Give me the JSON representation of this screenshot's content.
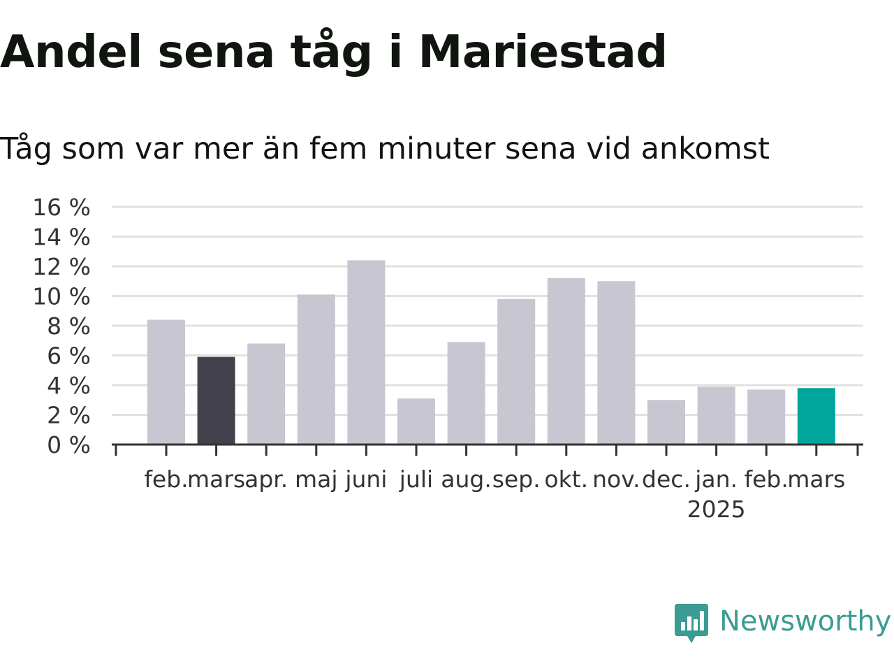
{
  "chart_data": {
    "type": "bar",
    "title": "Andel sena tåg i Mariestad",
    "subtitle": "Tåg som var mer än fem minuter sena vid ankomst",
    "categories": [
      "feb.",
      "mars",
      "apr.",
      "maj",
      "juni",
      "juli",
      "aug.",
      "sep.",
      "okt.",
      "nov.",
      "dec.",
      "jan.",
      "feb.",
      "mars"
    ],
    "year_label": "2025",
    "year_label_at_category": 11,
    "values": [
      8.4,
      5.9,
      6.8,
      10.1,
      12.4,
      3.1,
      6.9,
      9.8,
      11.2,
      11.0,
      3.0,
      3.9,
      3.7,
      3.8
    ],
    "bar_colors": [
      "#c8c6d1",
      "#42404b",
      "#c8c6d1",
      "#c8c6d1",
      "#c8c6d1",
      "#c8c6d1",
      "#c8c6d1",
      "#c8c6d1",
      "#c8c6d1",
      "#c8c6d1",
      "#c8c6d1",
      "#c8c6d1",
      "#c8c6d1",
      "#00a69c"
    ],
    "ylim": [
      0,
      16
    ],
    "yticks": [
      0,
      2,
      4,
      6,
      8,
      10,
      12,
      14,
      16
    ],
    "ytick_labels": [
      "0 %",
      "2 %",
      "4 %",
      "6 %",
      "8 %",
      "10 %",
      "12 %",
      "14 %",
      "16 %"
    ],
    "grid": true,
    "xlabel": "",
    "ylabel": ""
  },
  "brand": {
    "name": "Newsworthy",
    "icon": "newsworthy-logo-icon",
    "color": "#3a9c92"
  },
  "colors": {
    "grid": "#e1e1e1",
    "axis": "#333333"
  }
}
